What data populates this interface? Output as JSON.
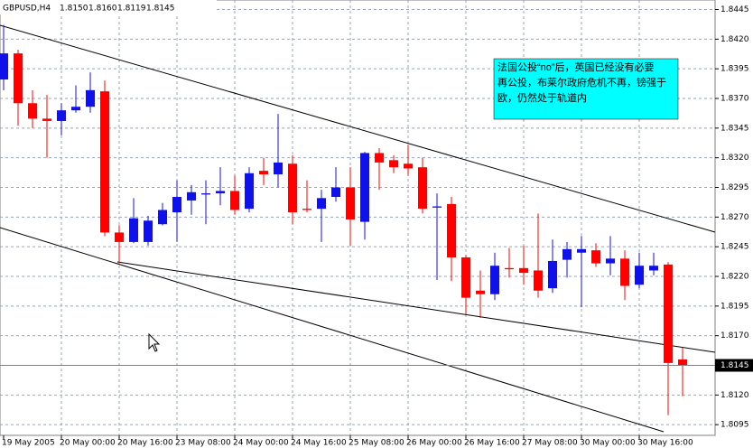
{
  "chart_data": {
    "type": "candlestick",
    "header": {
      "symbol": "GBPUSD,H4",
      "open": "1.8150",
      "high": "1.8160",
      "low": "1.8119",
      "close": "1.8145"
    },
    "annotation": [
      "法国公投“no”后，英国已经没有必要",
      "再公投，布莱尔政府危机不再，镑强于",
      "欧，仍然处于轨道内"
    ],
    "categories": [
      "19 May 2005",
      null,
      null,
      null,
      "20 May 00:00",
      null,
      null,
      null,
      "20 May 16:00",
      null,
      null,
      null,
      "23 May 08:00",
      null,
      null,
      null,
      "24 May 00:00",
      null,
      null,
      null,
      "24 May 16:00",
      null,
      null,
      null,
      "25 May 08:00",
      null,
      null,
      null,
      "26 May 00:00",
      null,
      null,
      null,
      "26 May 16:00",
      null,
      null,
      null,
      "27 May 08:00",
      null,
      null,
      null,
      "30 May 00:00",
      null,
      null,
      null,
      "30 May 16:00",
      null,
      null,
      null
    ],
    "open": [
      1.8386,
      1.8408,
      1.8366,
      1.8353,
      1.8351,
      1.836,
      1.8363,
      1.8376,
      1.8257,
      1.8249,
      1.8249,
      1.8264,
      1.8274,
      1.8284,
      1.8289,
      1.829,
      1.8292,
      1.8277,
      1.8309,
      1.8306,
      1.8315,
      1.8277,
      1.8277,
      1.8287,
      1.8295,
      1.8266,
      1.8324,
      1.8318,
      1.8315,
      1.8312,
      1.8278,
      1.8281,
      1.8236,
      1.8208,
      1.8205,
      1.8227,
      1.8227,
      1.8225,
      1.821,
      1.8234,
      1.824,
      1.8242,
      1.8231,
      1.8235,
      1.8213,
      1.8225,
      1.823,
      1.815
    ],
    "high": [
      1.8432,
      1.8411,
      1.8377,
      1.8373,
      1.8366,
      1.8381,
      1.8392,
      1.8385,
      1.8263,
      1.8286,
      1.8271,
      1.8282,
      1.8301,
      1.8297,
      1.8301,
      1.8312,
      1.8305,
      1.8312,
      1.832,
      1.8357,
      1.8322,
      1.8301,
      1.8293,
      1.8312,
      1.8312,
      1.8325,
      1.8328,
      1.8322,
      1.8331,
      1.832,
      1.829,
      1.8287,
      1.8238,
      1.8225,
      1.824,
      1.8244,
      1.8246,
      1.8273,
      1.8251,
      1.8249,
      1.8254,
      1.8248,
      1.8254,
      1.8242,
      1.824,
      1.824,
      1.8232,
      1.816
    ],
    "low": [
      1.8377,
      1.8347,
      1.8345,
      1.832,
      1.8339,
      1.8358,
      1.8358,
      1.8254,
      1.8231,
      1.8248,
      1.8246,
      1.8263,
      1.8249,
      1.8272,
      1.8264,
      1.828,
      1.8272,
      1.8274,
      1.8297,
      1.8295,
      1.8264,
      1.8274,
      1.8249,
      1.8283,
      1.8246,
      1.8251,
      1.8293,
      1.8307,
      1.8305,
      1.8273,
      1.8217,
      1.8216,
      1.8188,
      1.8185,
      1.82,
      1.8219,
      1.8213,
      1.8202,
      1.8206,
      1.8219,
      1.8194,
      1.8228,
      1.8221,
      1.82,
      1.821,
      1.8221,
      1.8103,
      1.8119
    ],
    "close": [
      1.8408,
      1.8366,
      1.8353,
      1.8351,
      1.836,
      1.8363,
      1.8377,
      1.8257,
      1.8249,
      1.8269,
      1.8267,
      1.8276,
      1.8287,
      1.8291,
      1.829,
      1.8292,
      1.8276,
      1.8307,
      1.8306,
      1.8316,
      1.8274,
      1.8276,
      1.8286,
      1.8295,
      1.8268,
      1.8324,
      1.8316,
      1.8312,
      1.8311,
      1.8277,
      1.8279,
      1.8236,
      1.8202,
      1.8205,
      1.8229,
      1.8226,
      1.8223,
      1.8208,
      1.8233,
      1.8243,
      1.8243,
      1.8231,
      1.8235,
      1.8212,
      1.8229,
      1.8229,
      1.8147,
      1.8145
    ],
    "up_color": "#1010e8",
    "down_color": "#ff0000",
    "ylim": [
      1.8086,
      1.8453
    ],
    "yticks": [
      1.8445,
      {
        "value": 1.842,
        "label": "1.8420"
      },
      1.8395,
      {
        "value": 1.837,
        "label": "1.8370"
      },
      1.8345,
      {
        "value": 1.832,
        "label": "1.8320"
      },
      1.8295,
      {
        "value": 1.827,
        "label": "1.8270"
      },
      1.8245,
      {
        "value": 1.822,
        "label": "1.8220"
      },
      1.8195,
      {
        "value": 1.817,
        "label": "1.8170"
      },
      {
        "value": 1.812,
        "label": "1.8120"
      },
      1.8095
    ],
    "grid": true
  }
}
